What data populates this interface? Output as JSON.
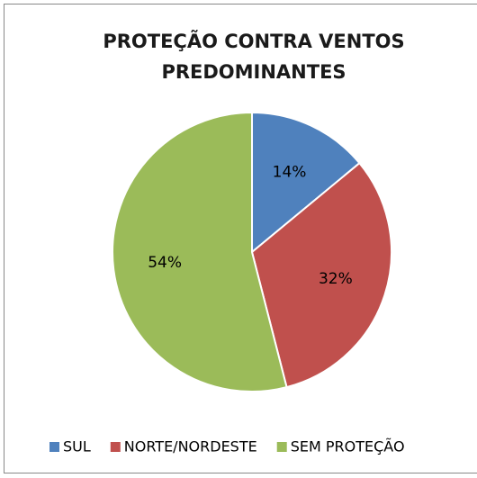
{
  "chart_data": {
    "type": "pie",
    "title": [
      "PROTEÇÃO CONTRA VENTOS",
      "PREDOMINANTES"
    ],
    "categories": [
      "SUL",
      "NORTE/NORDESTE",
      "SEM PROTEÇÃO"
    ],
    "values": [
      14,
      32,
      54
    ],
    "value_labels": [
      "14%",
      "32%",
      "54%"
    ],
    "colors": [
      "#4f81bd",
      "#c0504d",
      "#9bbb59"
    ],
    "legend": "bottom"
  }
}
